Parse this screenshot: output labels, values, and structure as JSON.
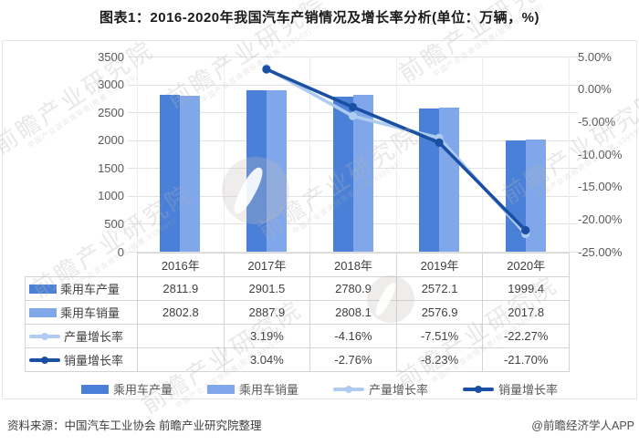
{
  "title": "图表1：2016-2020年我国汽车产销情况及增长率分析(单位：万辆，%)",
  "chart_data": {
    "type": "bar",
    "subtype": "bar-line-combo",
    "categories": [
      "2016年",
      "2017年",
      "2018年",
      "2019年",
      "2020年"
    ],
    "series": [
      {
        "name": "乘用车产量",
        "type": "bar",
        "axis": "left",
        "color": "#4a80d8",
        "values": [
          2811.9,
          2901.5,
          2780.9,
          2572.1,
          1999.4
        ]
      },
      {
        "name": "乘用车销量",
        "type": "bar",
        "axis": "left",
        "color": "#7fa7e9",
        "values": [
          2802.8,
          2887.9,
          2808.1,
          2576.9,
          2017.8
        ]
      },
      {
        "name": "产量增长率",
        "type": "line",
        "axis": "right",
        "color": "#aecbf0",
        "values": [
          null,
          3.19,
          -4.16,
          -7.51,
          -22.27
        ]
      },
      {
        "name": "销量增长率",
        "type": "line",
        "axis": "right",
        "color": "#1b4fa3",
        "values": [
          null,
          3.04,
          -2.76,
          -8.23,
          -21.7
        ]
      }
    ],
    "left_axis": {
      "min": 0,
      "max": 3500,
      "step": 500,
      "ticks": [
        "3500",
        "3000",
        "2500",
        "2000",
        "1500",
        "1000",
        "500",
        "0"
      ]
    },
    "right_axis": {
      "min": -25,
      "max": 5,
      "step": 5,
      "ticks": [
        "5.00%",
        "0.00%",
        "-5.00%",
        "-10.00%",
        "-15.00%",
        "-20.00%",
        "-25.00%"
      ]
    },
    "grid": true,
    "legend_position": "bottom"
  },
  "table": {
    "header": [
      "2016年",
      "2017年",
      "2018年",
      "2019年",
      "2020年"
    ],
    "rows": [
      {
        "label": "乘用车产量",
        "icon": "bar-swatch-production-icon",
        "cells": [
          "2811.9",
          "2901.5",
          "2780.9",
          "2572.1",
          "1999.4"
        ]
      },
      {
        "label": "乘用车销量",
        "icon": "bar-swatch-sales-icon",
        "cells": [
          "2802.8",
          "2887.9",
          "2808.1",
          "2576.9",
          "2017.8"
        ]
      },
      {
        "label": "产量增长率",
        "icon": "line-marker-production-growth-icon",
        "cells": [
          "",
          "3.19%",
          "-4.16%",
          "-7.51%",
          "-22.27%"
        ]
      },
      {
        "label": "销量增长率",
        "icon": "line-marker-sales-growth-icon",
        "cells": [
          "",
          "3.04%",
          "-2.76%",
          "-8.23%",
          "-21.70%"
        ]
      }
    ]
  },
  "legend": [
    {
      "label": "乘用车产量",
      "type": "bar",
      "color": "#4a80d8"
    },
    {
      "label": "乘用车销量",
      "type": "bar",
      "color": "#7fa7e9"
    },
    {
      "label": "产量增长率",
      "type": "line",
      "color": "#aecbf0"
    },
    {
      "label": "销量增长率",
      "type": "line",
      "color": "#1b4fa3"
    }
  ],
  "footer": {
    "source": "资料来源：中国汽车工业协会 前瞻产业研究院整理",
    "credit": "@前瞻经济学人APP"
  },
  "watermark": {
    "big": "前瞻产业研究院",
    "small": "中国产业咨询领导者(股票:839599)"
  },
  "colors": {
    "production_bar": "#4a80d8",
    "sales_bar": "#7fa7e9",
    "production_growth_line": "#aecbf0",
    "sales_growth_line": "#1b4fa3",
    "gridline": "#e3e3e3",
    "table_border": "#d4d4d4",
    "axis_text": "#595959",
    "value_text": "#404040"
  }
}
